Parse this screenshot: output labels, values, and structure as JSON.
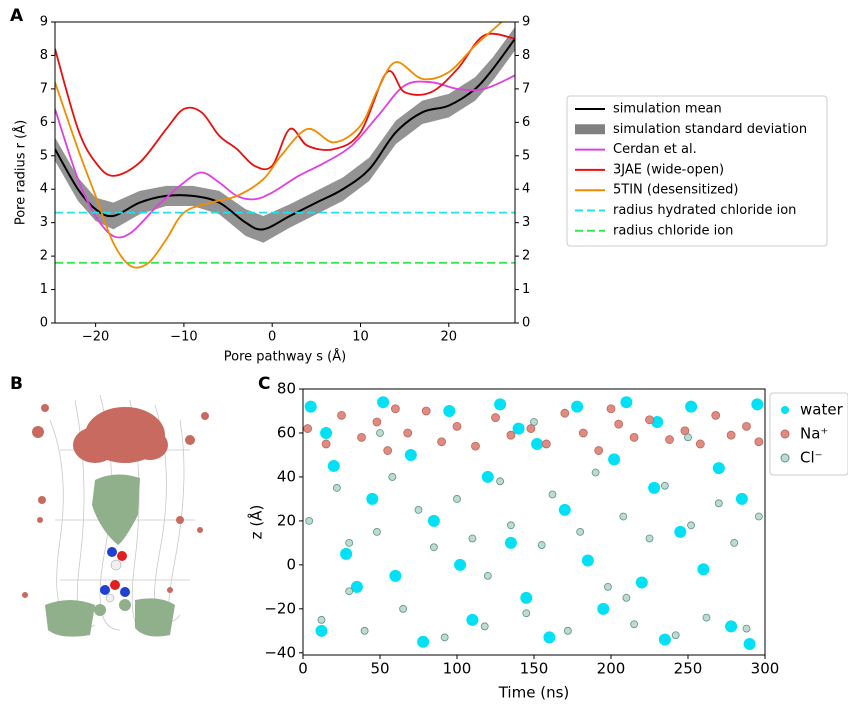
{
  "chart_data": [
    {
      "type": "line",
      "label": "A",
      "xlabel": "Pore pathway s (Å)",
      "ylabel": "Pore radius r (Å)",
      "xlim": [
        -24.6,
        27.5
      ],
      "ylim": [
        0,
        9
      ],
      "xticks": [
        {
          "value": -20,
          "label": "−20"
        },
        {
          "value": -10,
          "label": "−10"
        },
        0,
        10,
        20
      ],
      "yticks": [
        0,
        1,
        2,
        3,
        4,
        5,
        6,
        7,
        8,
        9
      ],
      "series": [
        {
          "name": "simulation mean",
          "color": "#000000",
          "x": [
            -24.6,
            -22,
            -20,
            -18,
            -15,
            -12,
            -9,
            -6,
            -3,
            -1,
            2,
            5,
            8,
            11,
            14,
            17,
            20,
            23,
            25,
            27.5
          ],
          "values": [
            5.2,
            4.0,
            3.4,
            3.2,
            3.6,
            3.8,
            3.8,
            3.6,
            3.0,
            2.8,
            3.2,
            3.6,
            4.0,
            4.6,
            5.7,
            6.3,
            6.5,
            7.0,
            7.6,
            8.5
          ]
        },
        {
          "name": "simulation standard deviation",
          "color": "#808080",
          "band": true,
          "x": [
            -24.6,
            -22,
            -20,
            -18,
            -15,
            -12,
            -9,
            -6,
            -3,
            -1,
            2,
            5,
            8,
            11,
            14,
            17,
            20,
            23,
            25,
            27.5
          ],
          "values": [
            0.35,
            0.35,
            0.35,
            0.4,
            0.35,
            0.3,
            0.3,
            0.35,
            0.4,
            0.4,
            0.35,
            0.35,
            0.35,
            0.35,
            0.35,
            0.35,
            0.35,
            0.35,
            0.35,
            0.35
          ]
        },
        {
          "name": "Cerdan et al.",
          "color": "#e040e0",
          "x": [
            -24.6,
            -22,
            -20,
            -18,
            -16,
            -13,
            -10,
            -8,
            -6,
            -4,
            -2,
            0,
            3,
            6,
            9,
            12,
            15,
            18,
            21,
            24,
            27.5
          ],
          "values": [
            6.4,
            4.3,
            3.2,
            2.6,
            2.7,
            3.5,
            4.2,
            4.5,
            4.2,
            3.8,
            3.7,
            3.9,
            4.4,
            4.8,
            5.3,
            6.2,
            7.1,
            7.2,
            7.0,
            7.0,
            7.4
          ]
        },
        {
          "name": "3JAE (wide-open)",
          "color": "#e8100c",
          "x": [
            -24.6,
            -22,
            -20,
            -18,
            -15,
            -12,
            -10,
            -8,
            -6,
            -4,
            -2,
            0,
            2,
            4,
            7,
            10,
            13,
            15,
            18,
            21,
            24,
            27.5
          ],
          "values": [
            8.2,
            5.8,
            4.8,
            4.4,
            4.8,
            5.8,
            6.4,
            6.3,
            5.6,
            5.2,
            4.7,
            4.7,
            5.8,
            5.3,
            5.2,
            5.7,
            7.5,
            6.9,
            6.9,
            7.6,
            8.6,
            8.5
          ]
        },
        {
          "name": "5TIN (desensitized)",
          "color": "#f08c00",
          "x": [
            -24.6,
            -22,
            -20,
            -18,
            -16,
            -14,
            -12,
            -10,
            -7,
            -4,
            -1,
            1,
            4,
            7,
            10,
            12,
            14,
            17,
            20,
            23,
            26
          ],
          "values": [
            7.2,
            5.2,
            3.8,
            2.4,
            1.7,
            1.8,
            2.5,
            3.3,
            3.6,
            3.8,
            4.3,
            5.0,
            5.8,
            5.4,
            5.9,
            7.0,
            7.8,
            7.3,
            7.5,
            8.3,
            9.0
          ]
        },
        {
          "name": "radius hydrated chloride ion",
          "color": "#22e0e8",
          "dash": true,
          "x": [
            -24.6,
            27.5
          ],
          "values": [
            3.3,
            3.3
          ]
        },
        {
          "name": "radius chloride ion",
          "color": "#33e855",
          "dash": true,
          "x": [
            -24.6,
            27.5
          ],
          "values": [
            1.8,
            1.8
          ]
        }
      ]
    },
    {
      "type": "scatter",
      "label": "C",
      "xlabel": "Time (ns)",
      "ylabel": "z (Å)",
      "xlim": [
        0,
        300
      ],
      "ylim": [
        -41,
        80
      ],
      "xticks": [
        0,
        50,
        100,
        150,
        200,
        250,
        300
      ],
      "yticks": [
        {
          "value": -40,
          "label": "−40"
        },
        {
          "value": -20,
          "label": "−20"
        },
        0,
        20,
        40,
        60,
        80
      ],
      "series": [
        {
          "name": "water",
          "color": "#00e1f5",
          "x": [
            5,
            12,
            20,
            28,
            35,
            45,
            52,
            60,
            70,
            78,
            85,
            95,
            102,
            110,
            120,
            128,
            135,
            145,
            152,
            160,
            170,
            178,
            185,
            195,
            202,
            210,
            220,
            228,
            235,
            245,
            252,
            260,
            270,
            278,
            285,
            295,
            15,
            140,
            230,
            290
          ],
          "values": [
            72,
            -30,
            45,
            5,
            -10,
            30,
            74,
            -5,
            50,
            -35,
            20,
            70,
            0,
            -25,
            40,
            73,
            10,
            -15,
            55,
            -33,
            25,
            72,
            2,
            -20,
            48,
            74,
            -8,
            35,
            -34,
            15,
            72,
            -2,
            44,
            -28,
            30,
            73,
            60,
            62,
            65,
            -36
          ]
        },
        {
          "name": "Na⁺",
          "color": "#e08a80",
          "x": [
            3,
            15,
            25,
            38,
            48,
            55,
            68,
            80,
            90,
            100,
            112,
            125,
            135,
            148,
            158,
            170,
            182,
            192,
            205,
            215,
            225,
            238,
            248,
            258,
            268,
            278,
            288,
            296,
            60,
            200
          ],
          "values": [
            62,
            55,
            68,
            58,
            65,
            52,
            60,
            70,
            56,
            63,
            54,
            67,
            59,
            62,
            55,
            69,
            60,
            52,
            64,
            58,
            66,
            57,
            61,
            55,
            68,
            59,
            63,
            56,
            71,
            71
          ]
        },
        {
          "name": "Cl⁻",
          "color": "#bcdccc",
          "x": [
            4,
            12,
            22,
            30,
            40,
            48,
            58,
            65,
            75,
            85,
            92,
            100,
            110,
            118,
            128,
            135,
            145,
            155,
            162,
            172,
            180,
            190,
            198,
            208,
            215,
            225,
            235,
            242,
            252,
            262,
            270,
            280,
            288,
            296,
            50,
            150,
            250,
            120,
            210,
            30
          ],
          "values": [
            20,
            -25,
            35,
            10,
            -30,
            15,
            40,
            -20,
            25,
            8,
            -33,
            30,
            12,
            -28,
            38,
            18,
            -22,
            9,
            32,
            -30,
            15,
            42,
            -10,
            22,
            -27,
            12,
            36,
            -32,
            18,
            -24,
            28,
            10,
            -29,
            22,
            60,
            65,
            58,
            -5,
            -15,
            -12
          ]
        }
      ]
    }
  ],
  "image_panel": {
    "label": "B"
  }
}
